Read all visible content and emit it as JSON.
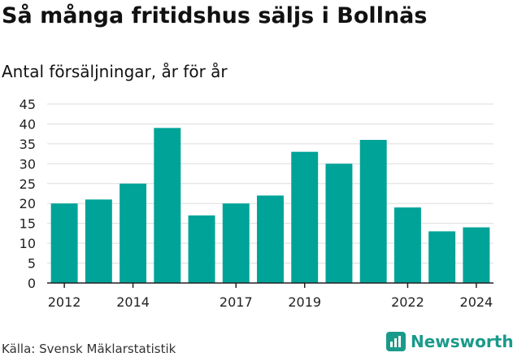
{
  "title": "Så många fritidshus säljs i Bollnäs",
  "subtitle": "Antal försäljningar, år för år",
  "source": "Källa: Svensk Mäklarstatistik",
  "brand": {
    "name": "Newsworthy",
    "color": "#1a9a8a",
    "icon": "newsworthy-logo-icon"
  },
  "colors": {
    "bar": "#00a398",
    "grid": "#dddddd",
    "axis": "#222222"
  },
  "chart_data": {
    "type": "bar",
    "categories": [
      "2012",
      "2013",
      "2014",
      "2015",
      "2016",
      "2017",
      "2018",
      "2019",
      "2020",
      "2021",
      "2022",
      "2023",
      "2024"
    ],
    "values": [
      20,
      21,
      25,
      39,
      17,
      20,
      22,
      33,
      30,
      36,
      19,
      13,
      14
    ],
    "ylim": [
      0,
      45
    ],
    "yticks": [
      0,
      5,
      10,
      15,
      20,
      25,
      30,
      35,
      40,
      45
    ],
    "xtick_labels": [
      "2012",
      "2014",
      "2017",
      "2019",
      "2022",
      "2024"
    ],
    "grid": true,
    "legend": "none"
  }
}
